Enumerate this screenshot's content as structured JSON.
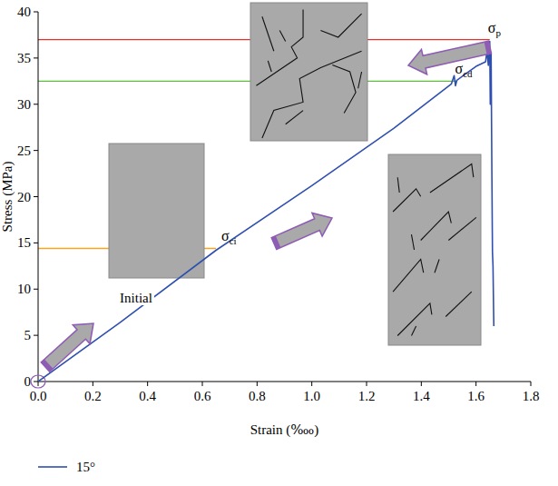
{
  "chart_data": {
    "type": "line",
    "x_label": "Strain (‱)",
    "y_label": "Stress (MPa)",
    "xlim": [
      0,
      1.8
    ],
    "ylim": [
      0,
      40
    ],
    "xticks": [
      {
        "value": 0,
        "label": "0.0"
      },
      0.2,
      0.4,
      0.6,
      0.8,
      {
        "value": 1,
        "label": "1.0"
      },
      1.2,
      1.4,
      1.6,
      1.8
    ],
    "yticks": [
      0,
      5,
      10,
      15,
      20,
      25,
      30,
      35,
      40
    ],
    "legend": "bottom",
    "series": [
      {
        "name": "15°",
        "color": "#2f4fb0",
        "x": [
          0,
          0.3,
          0.65,
          1.0,
          1.3,
          1.51,
          1.52,
          1.525,
          1.53,
          1.6,
          1.635,
          1.64,
          1.645,
          1.65,
          1.652,
          1.655,
          1.658,
          1.66,
          1.662,
          1.664,
          1.665
        ],
        "values": [
          0,
          6.4,
          14.2,
          21.2,
          27.4,
          32.2,
          33.1,
          32.0,
          32.6,
          34.1,
          34.6,
          35.8,
          34.2,
          36.8,
          30.0,
          35.5,
          22.0,
          14.0,
          12.5,
          8.0,
          6.0
        ]
      }
    ],
    "thresholds": [
      {
        "label": "σp",
        "value": 37,
        "x_end": 1.65,
        "color": "#e8302a"
      },
      {
        "label": "σcd",
        "value": 32.5,
        "x_end": 1.53,
        "color": "#5cbf3a"
      },
      {
        "label": "σci",
        "value": 14.4,
        "x_end": 0.65,
        "color": "#f5a623"
      }
    ],
    "annotation": "Initial"
  }
}
